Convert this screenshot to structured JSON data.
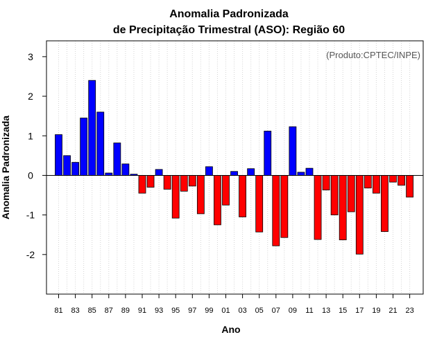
{
  "chart_data": {
    "type": "bar",
    "title": [
      "Anomalia Padronizada",
      "de Precipitação Trimestral (ASO): Região 60"
    ],
    "xlabel": "Ano",
    "ylabel": "Anomalia Padronizada",
    "note": "(Produto:CPTEC/INPE)",
    "ylim": [
      -3,
      3.4
    ],
    "yticks": [
      "-2",
      "-1",
      "0",
      "1",
      "2",
      "3"
    ],
    "ytick_values": [
      -2,
      -1,
      0,
      1,
      2,
      3
    ],
    "grid": true,
    "positive_color": "#0000ff",
    "negative_color": "#ff0000",
    "xtick_labels": [
      "81",
      "83",
      "85",
      "87",
      "89",
      "91",
      "93",
      "95",
      "97",
      "99",
      "01",
      "03",
      "05",
      "07",
      "09",
      "11",
      "13",
      "15",
      "17",
      "19",
      "21",
      "23"
    ],
    "categories": [
      "81",
      "82",
      "83",
      "84",
      "85",
      "86",
      "87",
      "88",
      "89",
      "90",
      "91",
      "92",
      "93",
      "94",
      "95",
      "96",
      "97",
      "98",
      "99",
      "00",
      "01",
      "02",
      "03",
      "04",
      "05",
      "06",
      "07",
      "08",
      "09",
      "10",
      "11",
      "12",
      "13",
      "14",
      "15",
      "16",
      "17",
      "18",
      "19",
      "20",
      "21",
      "22",
      "23"
    ],
    "values": [
      1.03,
      0.5,
      0.33,
      1.45,
      2.4,
      1.6,
      0.06,
      0.82,
      0.29,
      0.03,
      -0.45,
      -0.3,
      0.15,
      -0.35,
      -1.08,
      -0.4,
      -0.27,
      -0.97,
      0.22,
      -1.25,
      -0.75,
      0.1,
      -1.05,
      0.17,
      -1.43,
      1.12,
      -1.78,
      -1.57,
      1.23,
      0.08,
      0.18,
      -1.62,
      -0.37,
      -1.0,
      -1.63,
      -0.92,
      -1.99,
      -0.32,
      -0.45,
      -1.42,
      -0.17,
      -0.25,
      -0.55
    ]
  }
}
